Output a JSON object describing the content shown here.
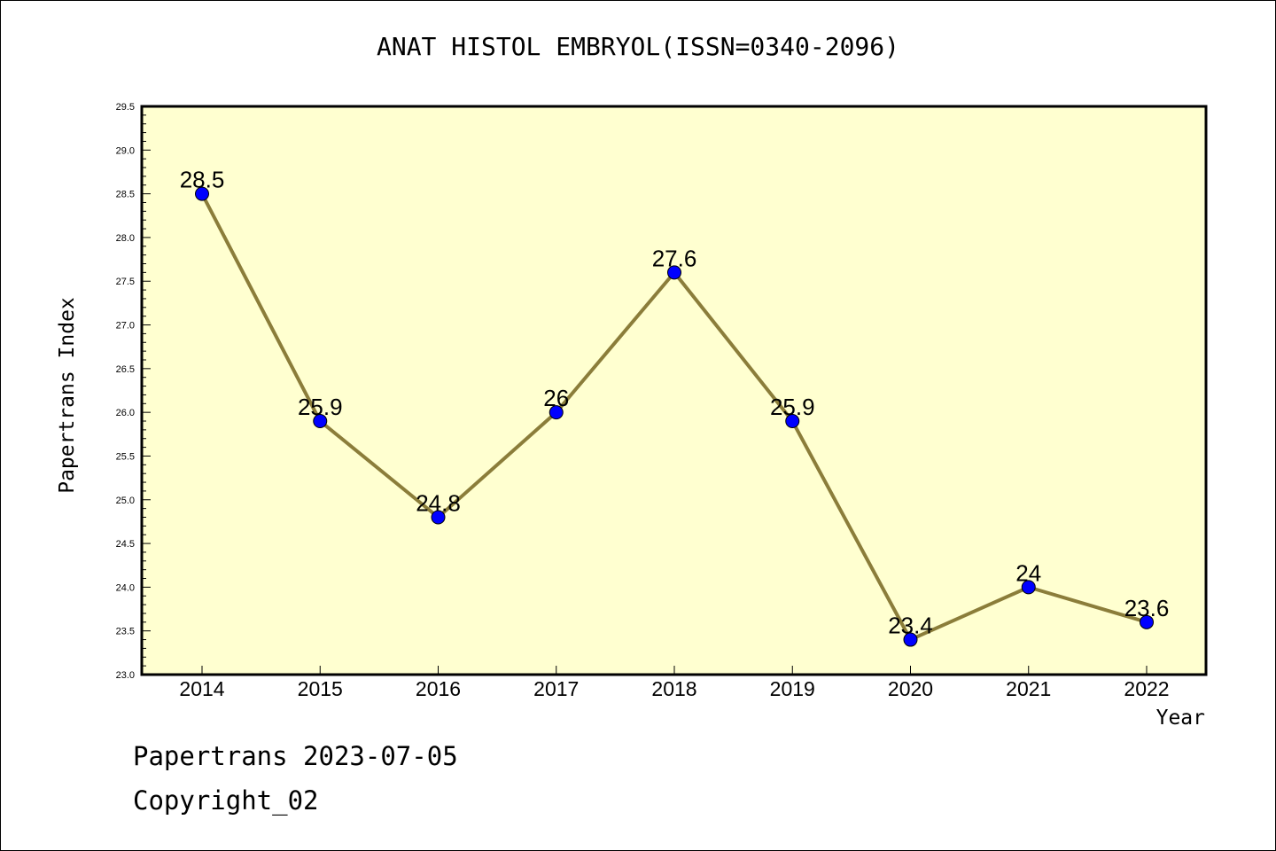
{
  "chart_data": {
    "type": "line",
    "title": "ANAT HISTOL EMBRYOL(ISSN=0340-2096)",
    "xlabel": "Year",
    "ylabel": "Papertrans Index",
    "categories": [
      "2014",
      "2015",
      "2016",
      "2017",
      "2018",
      "2019",
      "2020",
      "2021",
      "2022"
    ],
    "values": [
      28.5,
      25.9,
      24.8,
      26,
      27.6,
      25.9,
      23.4,
      24,
      23.6
    ],
    "data_labels": [
      "28.5",
      "25.9",
      "24.8",
      "26",
      "27.6",
      "25.9",
      "23.4",
      "24",
      "23.6"
    ],
    "ylim": [
      23.0,
      29.5
    ],
    "yticks": [
      "23.0",
      "23.5",
      "24.0",
      "24.5",
      "25.0",
      "25.5",
      "26.0",
      "26.5",
      "27.0",
      "27.5",
      "28.0",
      "28.5",
      "29.0",
      "29.5"
    ],
    "grid": false,
    "colors": {
      "plot_background": "#ffffd0",
      "line": "#8b7d3a",
      "marker": "#0000ff"
    }
  },
  "footer": {
    "line1": "Papertrans 2023-07-05",
    "line2": "Copyright_02"
  }
}
